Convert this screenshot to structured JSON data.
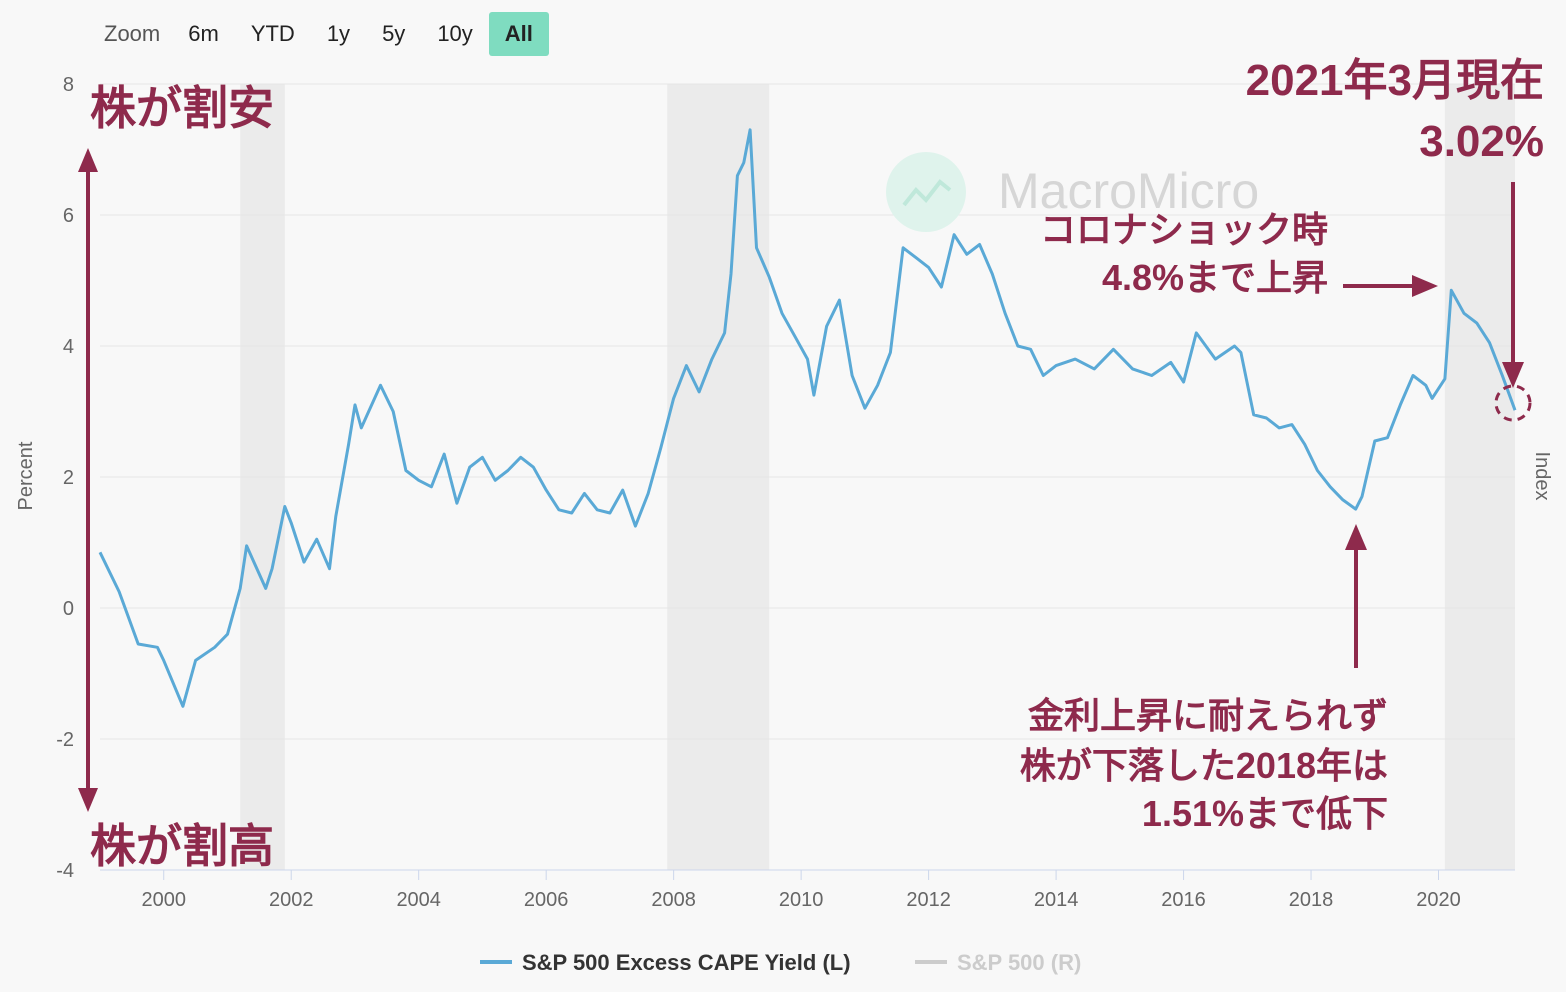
{
  "zoom": {
    "label": "Zoom",
    "buttons": [
      "6m",
      "YTD",
      "1y",
      "5y",
      "10y",
      "All"
    ],
    "active": "All"
  },
  "watermark": "MacroMicro",
  "legend": {
    "series1": "S&P 500 Excess CAPE Yield (L)",
    "series2": "S&P 500 (R)"
  },
  "annotations": {
    "top_left": "株が割安",
    "bottom_left": "株が割高",
    "current_line1": "2021年3月現在",
    "current_line2": "3.02%",
    "covid_line1": "コロナショック時",
    "covid_line2": "4.8%まで上昇",
    "low_line1": "金利上昇に耐えられず",
    "low_line2": "株が下落した2018年は",
    "low_line3": "1.51%まで低下"
  },
  "colors": {
    "series": "#5aa9d6",
    "annotation": "#8e2a4c",
    "recession": "#ebebeb",
    "active_button": "#7fdcc0"
  },
  "chart_data": {
    "type": "line",
    "ylabel": "Percent",
    "y2label": "Index",
    "ylim": [
      -4,
      8
    ],
    "yticks": [
      -4,
      -2,
      0,
      2,
      4,
      6,
      8
    ],
    "xlim": [
      1999.0,
      2021.2
    ],
    "xticks": [
      2000,
      2002,
      2004,
      2006,
      2008,
      2010,
      2012,
      2014,
      2016,
      2018,
      2020
    ],
    "grid": true,
    "legend_position": "bottom-center",
    "recessions": [
      [
        2001.2,
        2001.9
      ],
      [
        2007.9,
        2009.5
      ],
      [
        2020.1,
        2021.2
      ]
    ],
    "series": [
      {
        "name": "S&P 500 Excess CAPE Yield (L)",
        "x": [
          1999.0,
          1999.3,
          1999.6,
          1999.9,
          2000.0,
          2000.3,
          2000.5,
          2000.8,
          2001.0,
          2001.2,
          2001.3,
          2001.6,
          2001.7,
          2001.9,
          2002.0,
          2002.2,
          2002.4,
          2002.6,
          2002.7,
          2002.9,
          2003.0,
          2003.1,
          2003.4,
          2003.6,
          2003.8,
          2004.0,
          2004.2,
          2004.4,
          2004.6,
          2004.8,
          2005.0,
          2005.2,
          2005.4,
          2005.6,
          2005.8,
          2006.0,
          2006.2,
          2006.4,
          2006.6,
          2006.8,
          2007.0,
          2007.2,
          2007.4,
          2007.6,
          2007.8,
          2008.0,
          2008.2,
          2008.4,
          2008.6,
          2008.8,
          2008.9,
          2009.0,
          2009.1,
          2009.2,
          2009.3,
          2009.5,
          2009.7,
          2009.9,
          2010.1,
          2010.2,
          2010.4,
          2010.6,
          2010.8,
          2011.0,
          2011.2,
          2011.4,
          2011.6,
          2011.8,
          2012.0,
          2012.2,
          2012.4,
          2012.6,
          2012.8,
          2013.0,
          2013.2,
          2013.4,
          2013.6,
          2013.8,
          2014.0,
          2014.3,
          2014.6,
          2014.9,
          2015.2,
          2015.5,
          2015.8,
          2016.0,
          2016.2,
          2016.5,
          2016.8,
          2016.9,
          2017.1,
          2017.3,
          2017.5,
          2017.7,
          2017.9,
          2018.1,
          2018.3,
          2018.5,
          2018.7,
          2018.8,
          2019.0,
          2019.2,
          2019.4,
          2019.6,
          2019.8,
          2019.9,
          2020.1,
          2020.2,
          2020.4,
          2020.6,
          2020.8,
          2021.0,
          2021.2
        ],
        "values": [
          0.85,
          0.25,
          -0.55,
          -0.6,
          -0.8,
          -1.5,
          -0.8,
          -0.6,
          -0.4,
          0.3,
          0.95,
          0.3,
          0.6,
          1.55,
          1.3,
          0.7,
          1.05,
          0.6,
          1.4,
          2.5,
          3.1,
          2.75,
          3.4,
          3.0,
          2.1,
          1.95,
          1.85,
          2.35,
          1.6,
          2.15,
          2.3,
          1.95,
          2.1,
          2.3,
          2.15,
          1.8,
          1.5,
          1.45,
          1.75,
          1.5,
          1.45,
          1.8,
          1.25,
          1.75,
          2.45,
          3.2,
          3.7,
          3.3,
          3.8,
          4.2,
          5.1,
          6.6,
          6.8,
          7.3,
          5.5,
          5.05,
          4.5,
          4.15,
          3.8,
          3.25,
          4.3,
          4.7,
          3.55,
          3.05,
          3.4,
          3.9,
          5.5,
          5.35,
          5.2,
          4.9,
          5.7,
          5.4,
          5.55,
          5.1,
          4.5,
          4.0,
          3.95,
          3.55,
          3.7,
          3.8,
          3.65,
          3.95,
          3.65,
          3.55,
          3.75,
          3.45,
          4.2,
          3.8,
          4.0,
          3.9,
          2.95,
          2.9,
          2.75,
          2.8,
          2.5,
          2.1,
          1.85,
          1.65,
          1.51,
          1.7,
          2.55,
          2.6,
          3.1,
          3.55,
          3.4,
          3.2,
          3.5,
          4.85,
          4.5,
          4.35,
          4.05,
          3.55,
          3.02
        ]
      }
    ]
  }
}
